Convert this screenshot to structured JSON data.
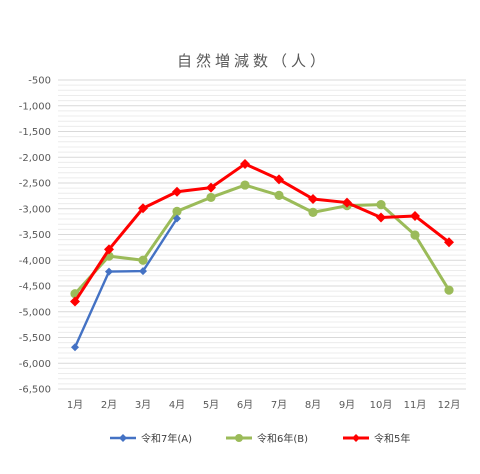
{
  "chart_data": {
    "type": "line",
    "title": "自然増減数（人）",
    "categories": [
      "1月",
      "2月",
      "3月",
      "4月",
      "5月",
      "6月",
      "7月",
      "8月",
      "9月",
      "10月",
      "11月",
      "12月"
    ],
    "ylim": [
      -6500,
      -500
    ],
    "yticks": [
      -500,
      -1000,
      -1500,
      -2000,
      -2500,
      -3000,
      -3500,
      -4000,
      -4500,
      -5000,
      -5500,
      -6000,
      -6500
    ],
    "ytick_labels": [
      "-500",
      "-1,000",
      "-1,500",
      "-2,000",
      "-2,500",
      "-3,000",
      "-3,500",
      "-4,000",
      "-4,500",
      "-5,000",
      "-5,500",
      "-6,000",
      "-6,500"
    ],
    "grid": true,
    "legend_position": "bottom",
    "series": [
      {
        "name": "令和7年(A)",
        "color": "#4472C4",
        "marker": "diamond",
        "values": [
          -5690,
          -4220,
          -4210,
          -3190,
          null,
          null,
          null,
          null,
          null,
          null,
          null,
          null
        ]
      },
      {
        "name": "令和6年(B)",
        "color": "#9BBB59",
        "marker": "circle",
        "values": [
          -4650,
          -3920,
          -4000,
          -3050,
          -2780,
          -2540,
          -2740,
          -3070,
          -2940,
          -2920,
          -3510,
          -4580
        ]
      },
      {
        "name": "令和5年",
        "color": "#FF0000",
        "marker": "diamond",
        "values": [
          -4800,
          -3790,
          -2990,
          -2670,
          -2590,
          -2130,
          -2430,
          -2810,
          -2880,
          -3170,
          -3140,
          -3650
        ]
      }
    ]
  }
}
